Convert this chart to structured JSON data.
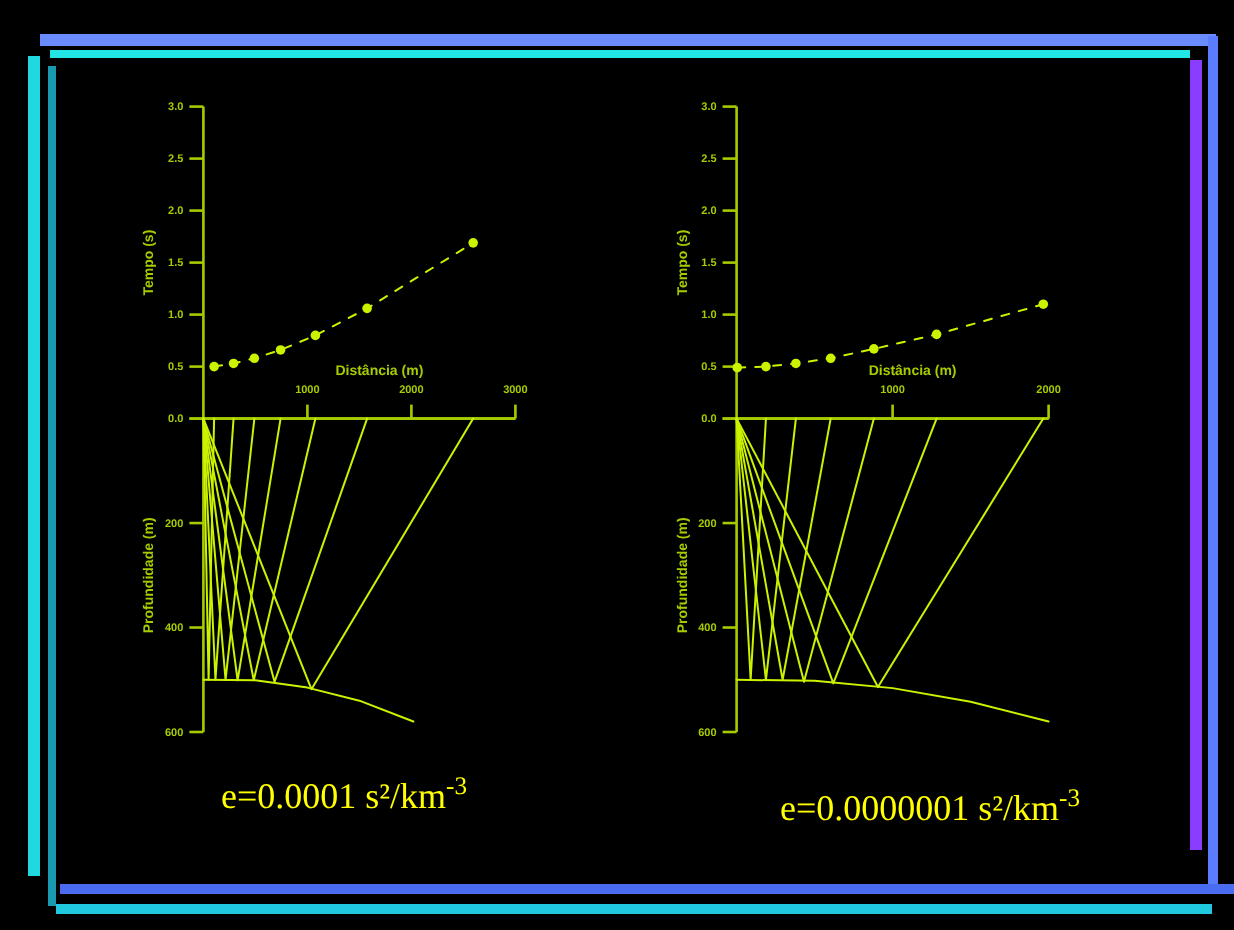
{
  "chart_data": [
    {
      "type": "line",
      "ylabel": "Tempo (s)",
      "xlabel": "Distância (m)",
      "xlim": [
        0,
        3000
      ],
      "xticks": [
        1000,
        2000,
        3000
      ],
      "ylim": [
        0,
        3
      ],
      "yticks": [
        {
          "value": 0,
          "label": "0.0"
        },
        0.5,
        {
          "value": 1,
          "label": "1.0"
        },
        1.5,
        {
          "value": 2,
          "label": "2.0"
        },
        2.5,
        {
          "value": 3,
          "label": "3.0"
        }
      ],
      "marker": "circle",
      "line_style": "dashed",
      "series": [
        {
          "color": "#ccf200",
          "x": [
            103,
            290,
            490,
            742,
            1077,
            1574,
            2594
          ],
          "values": [
            0.5,
            0.53,
            0.58,
            0.66,
            0.8,
            1.06,
            1.69
          ]
        }
      ]
    },
    {
      "type": "line",
      "ylabel": "Profundidade (m)",
      "xlim": [
        0,
        3000
      ],
      "ylim": [
        600,
        0
      ],
      "yticks": [
        {
          "value": 0,
          "label": null
        },
        200,
        400,
        600
      ],
      "tick_labels": "y",
      "annotations": [
        "e=0.0001 s²/km$^{-3}$"
      ],
      "series": [
        {
          "color": "#ccf200",
          "x": [
            0,
            50,
            103
          ],
          "values": [
            0,
            500,
            0
          ]
        },
        {
          "color": "#ccf200",
          "x": [
            0,
            116,
            290
          ],
          "values": [
            0,
            500,
            0
          ]
        },
        {
          "color": "#ccf200",
          "x": [
            0,
            213,
            490
          ],
          "values": [
            0,
            500,
            0
          ]
        },
        {
          "color": "#ccf200",
          "x": [
            0,
            329,
            742
          ],
          "values": [
            0,
            501,
            0
          ]
        },
        {
          "color": "#ccf200",
          "x": [
            0,
            484,
            1077
          ],
          "values": [
            0,
            501,
            0
          ]
        },
        {
          "color": "#ccf200",
          "x": [
            0,
            684,
            1574
          ],
          "values": [
            0,
            504,
            0
          ]
        },
        {
          "color": "#ccf200",
          "x": [
            0,
            1039,
            2594
          ],
          "values": [
            0,
            518,
            0
          ]
        },
        {
          "color": "#ccf200",
          "x": [
            0,
            500,
            1000,
            1500,
            2019
          ],
          "values": [
            500,
            501,
            515,
            540,
            580
          ]
        }
      ]
    },
    {
      "type": "line",
      "ylabel": "Tempo (s)",
      "xlabel": "Distância (m)",
      "xlim": [
        0,
        2000
      ],
      "xticks": [
        1000,
        2000
      ],
      "ylim": [
        0,
        3
      ],
      "yticks": [
        {
          "value": 0,
          "label": "0.0"
        },
        0.5,
        {
          "value": 1,
          "label": "1.0"
        },
        1.5,
        {
          "value": 2,
          "label": "2.0"
        },
        2.5,
        {
          "value": 3,
          "label": "3.0"
        }
      ],
      "marker": "circle",
      "line_style": "dashed",
      "series": [
        {
          "color": "#ccf200",
          "x": [
            4,
            188,
            380,
            603,
            880,
            1282,
            1966
          ],
          "values": [
            0.49,
            0.5,
            0.53,
            0.58,
            0.67,
            0.81,
            1.1
          ]
        }
      ]
    },
    {
      "type": "line",
      "ylabel": "Profundidade (m)",
      "xlim": [
        0,
        2000
      ],
      "ylim": [
        600,
        0
      ],
      "yticks": [
        {
          "value": 0,
          "label": null
        },
        200,
        400,
        600
      ],
      "tick_labels": "y",
      "annotations": [
        "e=0.0000001 s²/km$^{-3}$"
      ],
      "series": [
        {
          "color": "#ccf200",
          "x": [
            0,
            90,
            188
          ],
          "values": [
            0,
            500,
            0
          ]
        },
        {
          "color": "#ccf200",
          "x": [
            0,
            188,
            380
          ],
          "values": [
            0,
            500,
            0
          ]
        },
        {
          "color": "#ccf200",
          "x": [
            0,
            295,
            603
          ],
          "values": [
            0,
            500,
            0
          ]
        },
        {
          "color": "#ccf200",
          "x": [
            0,
            432,
            880
          ],
          "values": [
            0,
            504,
            0
          ]
        },
        {
          "color": "#ccf200",
          "x": [
            0,
            620,
            1282
          ],
          "values": [
            0,
            507,
            0
          ]
        },
        {
          "color": "#ccf200",
          "x": [
            0,
            906,
            1966
          ],
          "values": [
            0,
            514,
            0
          ]
        },
        {
          "color": "#ccf200",
          "x": [
            0,
            500,
            1000,
            1500,
            2000
          ],
          "values": [
            500,
            502,
            516,
            542,
            580
          ]
        }
      ]
    }
  ]
}
